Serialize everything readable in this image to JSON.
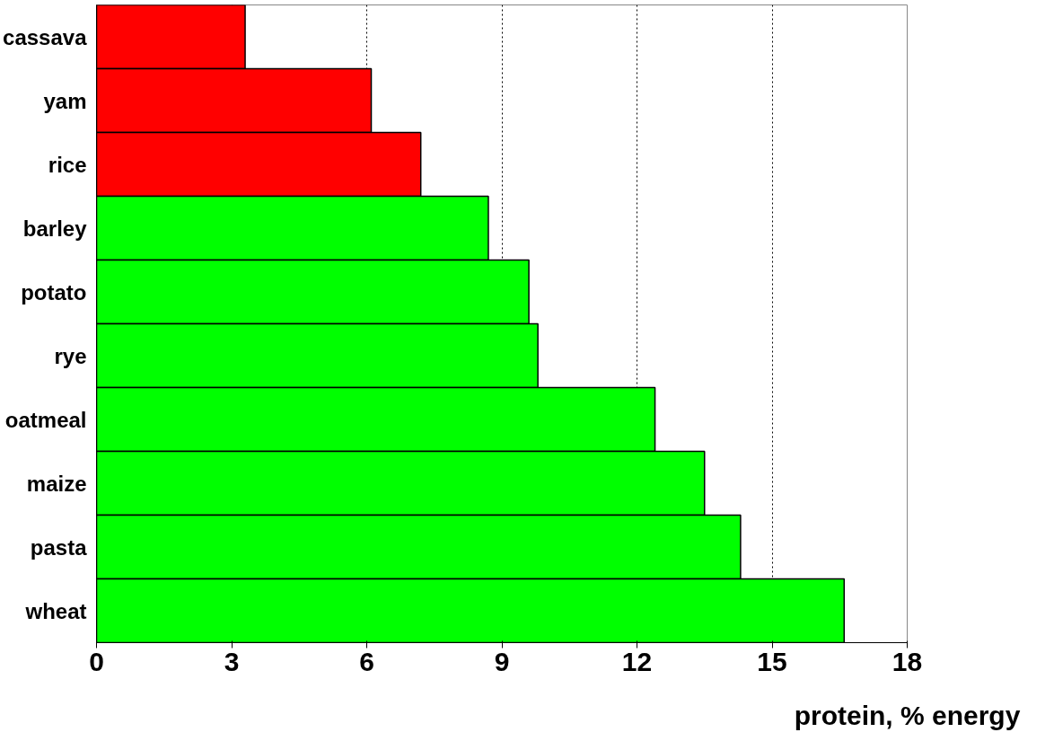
{
  "chart_data": {
    "type": "bar",
    "orientation": "horizontal",
    "xlabel": "protein, % energy",
    "categories": [
      "cassava",
      "yam",
      "rice",
      "barley",
      "potato",
      "rye",
      "oatmeal",
      "maize",
      "pasta",
      "wheat"
    ],
    "values": [
      3.3,
      6.1,
      7.2,
      8.7,
      9.6,
      9.8,
      12.4,
      13.5,
      14.3,
      16.6
    ],
    "colors": [
      "#ff0000",
      "#ff0000",
      "#ff0000",
      "#00ff00",
      "#00ff00",
      "#00ff00",
      "#00ff00",
      "#00ff00",
      "#00ff00",
      "#00ff00"
    ],
    "xlim": [
      0,
      18
    ],
    "xticks": [
      0,
      3,
      6,
      9,
      12,
      15,
      18
    ],
    "grid": "x",
    "line_style": "dotted"
  }
}
